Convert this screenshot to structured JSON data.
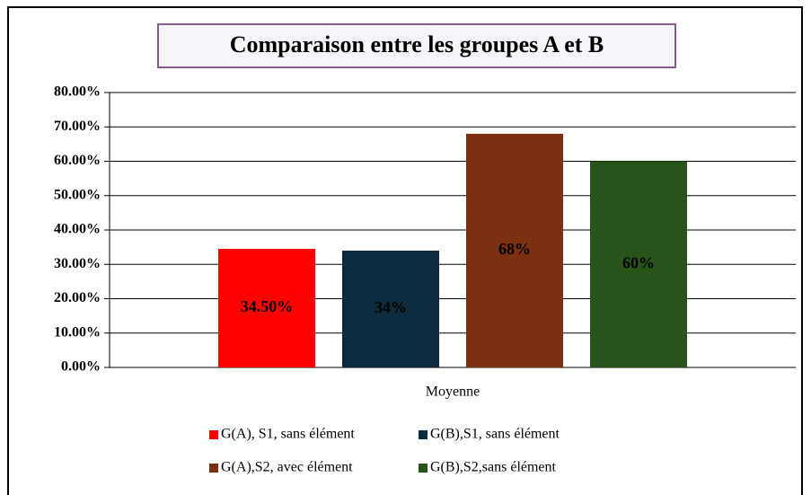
{
  "chart_data": {
    "type": "bar",
    "title": "Comparaison entre les groupes A et B",
    "categories": [
      "Moyenne"
    ],
    "series": [
      {
        "name": "G(A), S1, sans élément",
        "color": "#ff0000",
        "values": [
          34.5
        ],
        "value_labels": [
          "34.50%"
        ]
      },
      {
        "name": "G(B),S1, sans élément",
        "color": "#0e2b3d",
        "values": [
          34
        ],
        "value_labels": [
          "34%"
        ]
      },
      {
        "name": "G(A),S2, avec élément",
        "color": "#7b3111",
        "values": [
          68
        ],
        "value_labels": [
          "68%"
        ]
      },
      {
        "name": "G(B),S2,sans élément",
        "color": "#285319",
        "values": [
          60
        ],
        "value_labels": [
          "60%"
        ]
      }
    ],
    "ylim": [
      0,
      80
    ],
    "yticks": [
      {
        "value": 0,
        "label": "0.00%"
      },
      {
        "value": 10,
        "label": "10.00%"
      },
      {
        "value": 20,
        "label": "20.00%"
      },
      {
        "value": 30,
        "label": "30.00%"
      },
      {
        "value": 40,
        "label": "40.00%"
      },
      {
        "value": 50,
        "label": "50.00%"
      },
      {
        "value": 60,
        "label": "60.00%"
      },
      {
        "value": 70,
        "label": "70.00%"
      },
      {
        "value": 80,
        "label": "80.00%"
      }
    ],
    "grid": true,
    "legend": "bottom"
  }
}
